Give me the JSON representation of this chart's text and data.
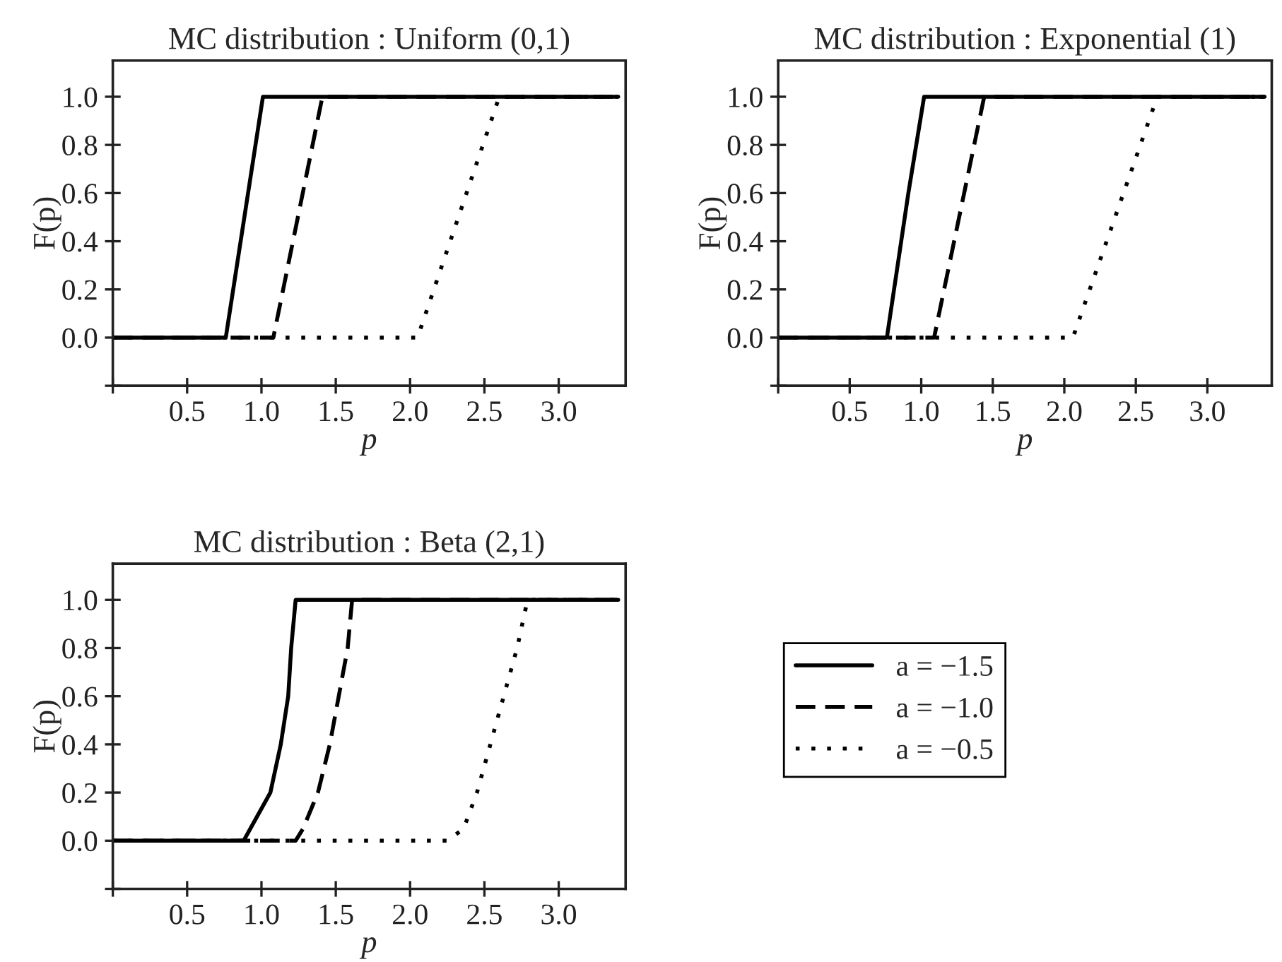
{
  "chart_data": [
    {
      "type": "line",
      "title": "MC distribution : Uniform (0,1)",
      "xlabel": "p",
      "ylabel": "F(p)",
      "xlim": [
        0,
        3.45
      ],
      "ylim": [
        -0.2,
        1.15
      ],
      "xticks": [
        {
          "value": 0,
          "label": null
        },
        0.5,
        {
          "value": 1,
          "label": "1.0"
        },
        1.5,
        {
          "value": 2,
          "label": "2.0"
        },
        2.5,
        {
          "value": 3,
          "label": "3.0"
        }
      ],
      "yticks": [
        {
          "value": -0.2,
          "label": null
        },
        {
          "value": 0,
          "label": "0.0"
        },
        0.2,
        0.4,
        0.6,
        0.8,
        {
          "value": 1,
          "label": "1.0"
        }
      ],
      "grid": false,
      "legend": false,
      "series": [
        {
          "color": "#000000",
          "line_style": "solid",
          "x": [
            0,
            0.76,
            1.01,
            3.4
          ],
          "values": [
            0,
            0,
            1,
            1
          ]
        },
        {
          "color": "#000000",
          "line_style": "dashed",
          "x": [
            0,
            1.08,
            1.41,
            3.4
          ],
          "values": [
            0,
            0,
            1,
            1
          ]
        },
        {
          "color": "#000000",
          "line_style": "dotted",
          "x": [
            0,
            2.05,
            2.6,
            3.4
          ],
          "values": [
            0,
            0,
            1,
            1
          ]
        }
      ]
    },
    {
      "type": "line",
      "title": "MC distribution : Exponential (1)",
      "xlabel": "p",
      "ylabel": "F(p)",
      "xlim": [
        0,
        3.45
      ],
      "ylim": [
        -0.2,
        1.15
      ],
      "xticks": [
        {
          "value": 0,
          "label": null
        },
        0.5,
        {
          "value": 1,
          "label": "1.0"
        },
        1.5,
        {
          "value": 2,
          "label": "2.0"
        },
        2.5,
        {
          "value": 3,
          "label": "3.0"
        }
      ],
      "yticks": [
        {
          "value": -0.2,
          "label": null
        },
        {
          "value": 0,
          "label": "0.0"
        },
        0.2,
        0.4,
        0.6,
        0.8,
        {
          "value": 1,
          "label": "1.0"
        }
      ],
      "grid": false,
      "legend": false,
      "series": [
        {
          "color": "#000000",
          "line_style": "solid",
          "x": [
            0,
            0.76,
            0.91,
            1.02,
            3.4
          ],
          "values": [
            0,
            0,
            0.6,
            1,
            1
          ]
        },
        {
          "color": "#000000",
          "line_style": "dashed",
          "x": [
            0,
            1.09,
            1.44,
            3.4
          ],
          "values": [
            0,
            0,
            1,
            1
          ]
        },
        {
          "color": "#000000",
          "line_style": "dotted",
          "x": [
            0,
            2.06,
            2.65,
            3.4
          ],
          "values": [
            0,
            0,
            1,
            1
          ]
        }
      ]
    },
    {
      "type": "line",
      "title": "MC distribution : Beta (2,1)",
      "xlabel": "p",
      "ylabel": "F(p)",
      "xlim": [
        0,
        3.45
      ],
      "ylim": [
        -0.2,
        1.15
      ],
      "xticks": [
        {
          "value": 0,
          "label": null
        },
        0.5,
        {
          "value": 1,
          "label": "1.0"
        },
        1.5,
        {
          "value": 2,
          "label": "2.0"
        },
        2.5,
        {
          "value": 3,
          "label": "3.0"
        }
      ],
      "yticks": [
        {
          "value": -0.2,
          "label": null
        },
        {
          "value": 0,
          "label": "0.0"
        },
        0.2,
        0.4,
        0.6,
        0.8,
        {
          "value": 1,
          "label": "1.0"
        }
      ],
      "grid": false,
      "legend": "right",
      "series": [
        {
          "name": "a = −1.5",
          "color": "#000000",
          "line_style": "solid",
          "x": [
            0,
            0.88,
            1.06,
            1.13,
            1.18,
            1.2,
            1.23,
            3.4
          ],
          "values": [
            0,
            0,
            0.2,
            0.4,
            0.6,
            0.8,
            1,
            1
          ]
        },
        {
          "name": "a = −1.0",
          "color": "#000000",
          "line_style": "dashed",
          "x": [
            0,
            1.23,
            1.28,
            1.38,
            1.46,
            1.52,
            1.58,
            1.61,
            3.4
          ],
          "values": [
            0,
            0,
            0.05,
            0.2,
            0.4,
            0.6,
            0.8,
            1,
            1
          ]
        },
        {
          "name": "a = −0.5",
          "color": "#000000",
          "line_style": "dotted",
          "x": [
            0,
            2.25,
            2.36,
            2.45,
            2.54,
            2.63,
            2.72,
            2.79,
            3.4
          ],
          "values": [
            0,
            0,
            0.05,
            0.2,
            0.4,
            0.6,
            0.8,
            1,
            1
          ]
        }
      ]
    }
  ]
}
